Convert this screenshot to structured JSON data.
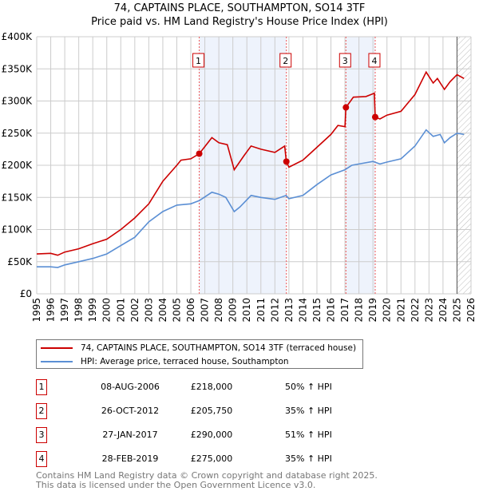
{
  "title": "74, CAPTAINS PLACE, SOUTHAMPTON, SO14 3TF",
  "subtitle": "Price paid vs. HM Land Registry's House Price Index (HPI)",
  "chart_data": {
    "type": "line",
    "xlim": [
      1995,
      2026
    ],
    "ylim": [
      0,
      400000
    ],
    "y_ticks": [
      0,
      50000,
      100000,
      150000,
      200000,
      250000,
      300000,
      350000,
      400000
    ],
    "y_tick_labels": [
      "£0",
      "£50K",
      "£100K",
      "£150K",
      "£200K",
      "£250K",
      "£300K",
      "£350K",
      "£400K"
    ],
    "x_ticks": [
      1995,
      1996,
      1997,
      1998,
      1999,
      2000,
      2001,
      2002,
      2003,
      2004,
      2005,
      2006,
      2007,
      2008,
      2009,
      2010,
      2011,
      2012,
      2013,
      2014,
      2015,
      2016,
      2017,
      2018,
      2019,
      2020,
      2021,
      2022,
      2023,
      2024,
      2025,
      2026
    ],
    "grid": true,
    "shaded_periods": [
      [
        2006.6,
        2012.82
      ],
      [
        2017.07,
        2019.16
      ]
    ],
    "forecast_hatch_from": 2025.0,
    "series": [
      {
        "name": "74, CAPTAINS PLACE, SOUTHAMPTON, SO14 3TF (terraced house)",
        "color": "#cc0000",
        "x": [
          1995,
          1996,
          1996.5,
          1997,
          1998,
          1999,
          2000,
          2001,
          2002,
          2003,
          2004,
          2005,
          2005.3,
          2006,
          2006.6,
          2007.5,
          2008,
          2008.6,
          2009.1,
          2009.8,
          2010.3,
          2011,
          2012,
          2012.7,
          2012.82,
          2013,
          2014,
          2015,
          2016,
          2016.5,
          2017,
          2017.07,
          2017.6,
          2018.5,
          2019.1,
          2019.16,
          2019.5,
          2020,
          2021,
          2022,
          2022.8,
          2023.3,
          2023.6,
          2024.1,
          2024.5,
          2025,
          2025.5
        ],
        "y": [
          62000,
          63000,
          60000,
          65000,
          70000,
          78000,
          85000,
          100000,
          118000,
          140000,
          175000,
          200000,
          208000,
          210000,
          218000,
          243000,
          235000,
          232000,
          193000,
          215000,
          230000,
          225000,
          220000,
          230000,
          205750,
          197000,
          208000,
          228000,
          248000,
          262000,
          260000,
          290000,
          306000,
          307000,
          312000,
          275000,
          272000,
          278000,
          284000,
          310000,
          345000,
          328000,
          335000,
          318000,
          330000,
          341000,
          335000
        ]
      },
      {
        "name": "HPI: Average price, terraced house, Southampton",
        "color": "#5b8fd4",
        "x": [
          1995,
          1996,
          1996.5,
          1997,
          1998,
          1999,
          2000,
          2001,
          2002,
          2003,
          2004,
          2005,
          2006,
          2006.6,
          2007.5,
          2008,
          2008.5,
          2009.1,
          2009.5,
          2010.3,
          2011,
          2012,
          2012.8,
          2013,
          2014,
          2015,
          2016,
          2017,
          2017.5,
          2018,
          2019,
          2019.5,
          2020,
          2021,
          2022,
          2022.8,
          2023.3,
          2023.8,
          2024.1,
          2024.5,
          2025,
          2025.5
        ],
        "y": [
          42000,
          42000,
          41000,
          45000,
          50000,
          55000,
          62000,
          75000,
          88000,
          112000,
          128000,
          138000,
          140000,
          145000,
          158000,
          155000,
          150000,
          128000,
          135000,
          153000,
          150000,
          147000,
          153000,
          148000,
          153000,
          170000,
          185000,
          193000,
          200000,
          202000,
          206000,
          202000,
          205000,
          210000,
          230000,
          255000,
          245000,
          248000,
          235000,
          243000,
          250000,
          248000
        ]
      }
    ],
    "sales": [
      {
        "label": "1",
        "x": 2006.6,
        "y": 218000
      },
      {
        "label": "2",
        "x": 2012.82,
        "y": 205750
      },
      {
        "label": "3",
        "x": 2017.07,
        "y": 290000
      },
      {
        "label": "4",
        "x": 2019.16,
        "y": 275000
      }
    ]
  },
  "legend": {
    "property": "74, CAPTAINS PLACE, SOUTHAMPTON, SO14 3TF (terraced house)",
    "hpi": "HPI: Average price, terraced house, Southampton"
  },
  "transactions": [
    {
      "num": "1",
      "date": "08-AUG-2006",
      "price": "£218,000",
      "hpi": "50% ↑ HPI"
    },
    {
      "num": "2",
      "date": "26-OCT-2012",
      "price": "£205,750",
      "hpi": "35% ↑ HPI"
    },
    {
      "num": "3",
      "date": "27-JAN-2017",
      "price": "£290,000",
      "hpi": "51% ↑ HPI"
    },
    {
      "num": "4",
      "date": "28-FEB-2019",
      "price": "£275,000",
      "hpi": "35% ↑ HPI"
    }
  ],
  "footer": {
    "line1": "Contains HM Land Registry data © Crown copyright and database right 2025.",
    "line2": "This data is licensed under the Open Government Licence v3.0."
  },
  "colors": {
    "property": "#cc0000",
    "hpi": "#5b8fd4",
    "shade": "#eef3fc"
  }
}
